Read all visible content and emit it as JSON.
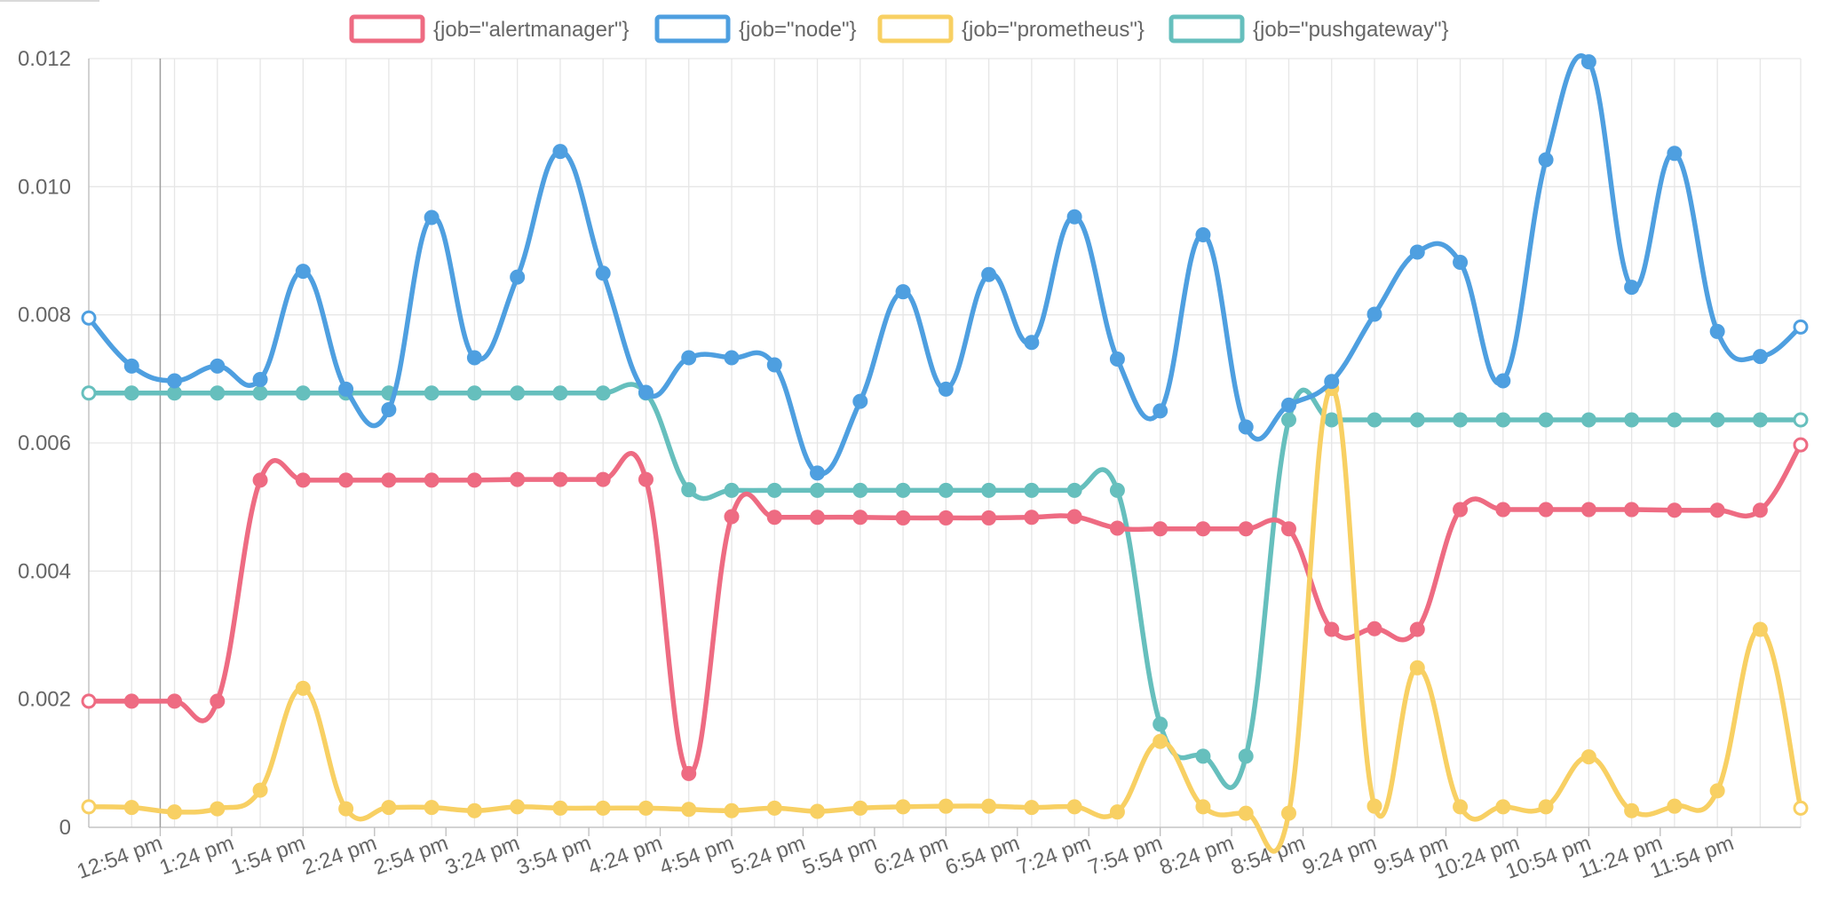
{
  "chart_data": {
    "type": "line",
    "title": "",
    "xlabel": "",
    "ylabel": "",
    "ylim": [
      0,
      0.012
    ],
    "grid": true,
    "legend_position": "top-center",
    "y_ticks": [
      "0",
      "0.002",
      "0.004",
      "0.006",
      "0.008",
      "0.010",
      "0.012"
    ],
    "y_tick_values": [
      0,
      0.002,
      0.004,
      0.006,
      0.008,
      0.01,
      0.012
    ],
    "x_ticks": [
      "12:54 pm",
      "1:24 pm",
      "1:54 pm",
      "2:24 pm",
      "2:54 pm",
      "3:24 pm",
      "3:54 pm",
      "4:24 pm",
      "4:54 pm",
      "5:24 pm",
      "5:54 pm",
      "6:24 pm",
      "6:54 pm",
      "7:24 pm",
      "7:54 pm",
      "8:24 pm",
      "8:54 pm",
      "9:24 pm",
      "9:54 pm",
      "10:24 pm",
      "10:54 pm",
      "11:24 pm",
      "11:54 pm"
    ],
    "x_tick_minutes": [
      54,
      84,
      114,
      144,
      174,
      204,
      234,
      264,
      294,
      324,
      354,
      384,
      414,
      444,
      474,
      504,
      534,
      564,
      594,
      624,
      654,
      684,
      714
    ],
    "x_range_minutes": [
      24,
      743
    ],
    "x_minutes": [
      24,
      42,
      60,
      78,
      96,
      114,
      132,
      150,
      168,
      186,
      204,
      222,
      240,
      258,
      276,
      294,
      312,
      330,
      348,
      366,
      384,
      402,
      420,
      438,
      456,
      474,
      492,
      510,
      528,
      546,
      564,
      582,
      600,
      618,
      636,
      654,
      672,
      690,
      708,
      726,
      743
    ],
    "series": [
      {
        "name": "{job=\"alertmanager\"}",
        "color": "#ee6b82",
        "values": [
          0.00197,
          0.00197,
          0.00197,
          0.00197,
          0.00542,
          0.00542,
          0.00542,
          0.00542,
          0.00542,
          0.00542,
          0.00543,
          0.00543,
          0.00543,
          0.00543,
          0.00084,
          0.00485,
          0.00484,
          0.00484,
          0.00484,
          0.00483,
          0.00483,
          0.00483,
          0.00484,
          0.00485,
          0.00467,
          0.00466,
          0.00466,
          0.00466,
          0.00466,
          0.00309,
          0.0031,
          0.00309,
          0.00496,
          0.00496,
          0.00496,
          0.00496,
          0.00496,
          0.00495,
          0.00495,
          0.00495,
          0.00597
        ]
      },
      {
        "name": "{job=\"node\"}",
        "color": "#4e9fe0",
        "values": [
          0.00795,
          0.0072,
          0.00697,
          0.0072,
          0.00699,
          0.00868,
          0.00684,
          0.00652,
          0.00952,
          0.00733,
          0.00859,
          0.01055,
          0.00865,
          0.00679,
          0.00733,
          0.00733,
          0.00722,
          0.00553,
          0.00665,
          0.00836,
          0.00684,
          0.00863,
          0.00757,
          0.00953,
          0.00731,
          0.0065,
          0.00925,
          0.00625,
          0.00659,
          0.00696,
          0.00801,
          0.00898,
          0.00882,
          0.00697,
          0.01042,
          0.01195,
          0.00843,
          0.01052,
          0.00774,
          0.00735,
          0.00781
        ]
      },
      {
        "name": "{job=\"prometheus\"}",
        "color": "#f8d063",
        "values": [
          0.00032,
          0.00031,
          0.00024,
          0.00029,
          0.00058,
          0.00217,
          0.00029,
          0.00031,
          0.00031,
          0.00026,
          0.00032,
          0.0003,
          0.0003,
          0.0003,
          0.00028,
          0.00026,
          0.0003,
          0.00025,
          0.0003,
          0.00032,
          0.00033,
          0.00033,
          0.00031,
          0.00032,
          0.00024,
          0.00134,
          0.00032,
          0.00022,
          0.00022,
          0.00685,
          0.00033,
          0.00249,
          0.00032,
          0.00032,
          0.00032,
          0.0011,
          0.00026,
          0.00033,
          0.00057,
          0.00309,
          0.0003
        ]
      },
      {
        "name": "{job=\"pushgateway\"}",
        "color": "#66bfbd",
        "values": [
          0.00678,
          0.00678,
          0.00678,
          0.00678,
          0.00678,
          0.00678,
          0.00678,
          0.00678,
          0.00678,
          0.00678,
          0.00678,
          0.00678,
          0.00678,
          0.00678,
          0.00527,
          0.00526,
          0.00526,
          0.00526,
          0.00526,
          0.00526,
          0.00526,
          0.00526,
          0.00526,
          0.00526,
          0.00526,
          0.00161,
          0.00111,
          0.00111,
          0.00636,
          0.00636,
          0.00636,
          0.00636,
          0.00636,
          0.00636,
          0.00636,
          0.00636,
          0.00636,
          0.00636,
          0.00636,
          0.00636,
          0.00636
        ]
      }
    ]
  }
}
